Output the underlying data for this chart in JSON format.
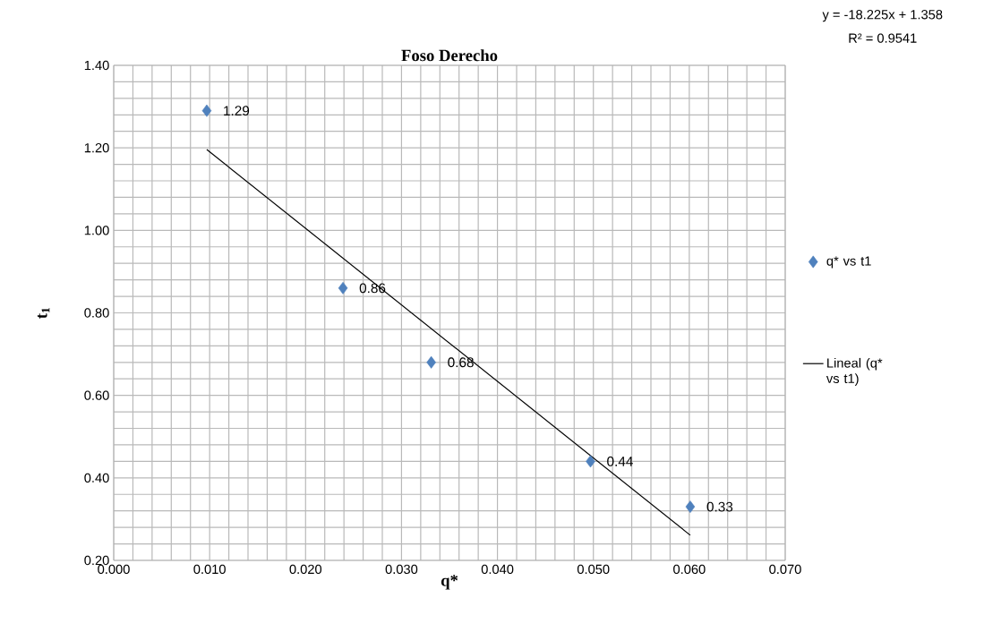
{
  "chart_data": {
    "type": "scatter",
    "title": "Foso Derecho",
    "xlabel": "q*",
    "ylabel": "t$_{1}$",
    "annotations": [
      "y = -18.225x + 1.358",
      "R² = 0.9541"
    ],
    "series": [
      {
        "name": "q* vs t1",
        "marker": "diamond",
        "color": "#4f81bd",
        "x": [
          0.0097,
          0.0239,
          0.0331,
          0.0497,
          0.0601
        ],
        "values": [
          1.29,
          0.86,
          0.68,
          0.44,
          0.33
        ],
        "value_labels": [
          "1.29",
          "0.86",
          "0.68",
          "0.44",
          "0.33"
        ]
      },
      {
        "name": "Lineal (q* vs t1)",
        "type": "line",
        "color": "#000000",
        "x": [
          0.0097,
          0.0601
        ],
        "values": [
          1.196,
          0.261
        ]
      }
    ],
    "xlim": [
      0,
      0.07
    ],
    "ylim": [
      0.2,
      1.4
    ],
    "xticks": [
      {
        "value": 0,
        "label": "0.000"
      },
      {
        "value": 0.01,
        "label": "0.010"
      },
      {
        "value": 0.02,
        "label": "0.020"
      },
      {
        "value": 0.03,
        "label": "0.030"
      },
      {
        "value": 0.04,
        "label": "0.040"
      },
      {
        "value": 0.05,
        "label": "0.050"
      },
      {
        "value": 0.06,
        "label": "0.060"
      },
      {
        "value": 0.07,
        "label": "0.070"
      }
    ],
    "yticks": [
      {
        "value": 0.2,
        "label": "0.20"
      },
      {
        "value": 0.4,
        "label": "0.40"
      },
      {
        "value": 0.6,
        "label": "0.60"
      },
      {
        "value": 0.8,
        "label": "0.80"
      },
      {
        "value": 1.0,
        "label": "1.00"
      },
      {
        "value": 1.2,
        "label": "1.20"
      },
      {
        "value": 1.4,
        "label": "1.40"
      }
    ],
    "grid": true,
    "legend": "right"
  }
}
